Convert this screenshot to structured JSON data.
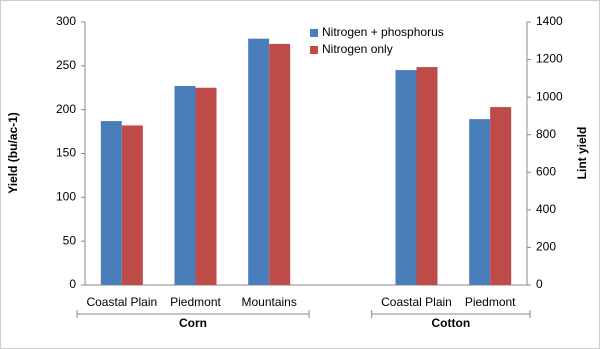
{
  "chart_data": {
    "type": "bar",
    "categories": [
      "Coastal Plain",
      "Piedmont",
      "Mountains",
      null,
      "Coastal Plain",
      "Piedmont"
    ],
    "groups": [
      {
        "label": "Corn"
      },
      {
        "label": "Cotton"
      }
    ],
    "ylabel": "Yield (bu/ac-1)",
    "y2label": "Lint yield",
    "ylim": [
      0,
      300
    ],
    "yticks": [
      0,
      50,
      100,
      150,
      200,
      250,
      300
    ],
    "y2lim": [
      0,
      1400
    ],
    "y2ticks": [
      0,
      200,
      400,
      600,
      800,
      1000,
      1200,
      1400
    ],
    "legend": "top",
    "series": [
      {
        "name": "Nitrogen + phosphorus",
        "color": "#4a7ebb",
        "values": [
          187,
          227,
          281,
          null,
          null,
          null
        ]
      },
      {
        "name": "Nitrogen only",
        "color": "#be4b48",
        "values": [
          182,
          225,
          275,
          null,
          null,
          null
        ]
      },
      {
        "color": "#4a7ebb",
        "axis": "y2",
        "values": [
          null,
          null,
          null,
          null,
          1144,
          883
        ]
      },
      {
        "color": "#be4b48",
        "axis": "y2",
        "values": [
          null,
          null,
          null,
          null,
          1160,
          947
        ]
      }
    ]
  }
}
